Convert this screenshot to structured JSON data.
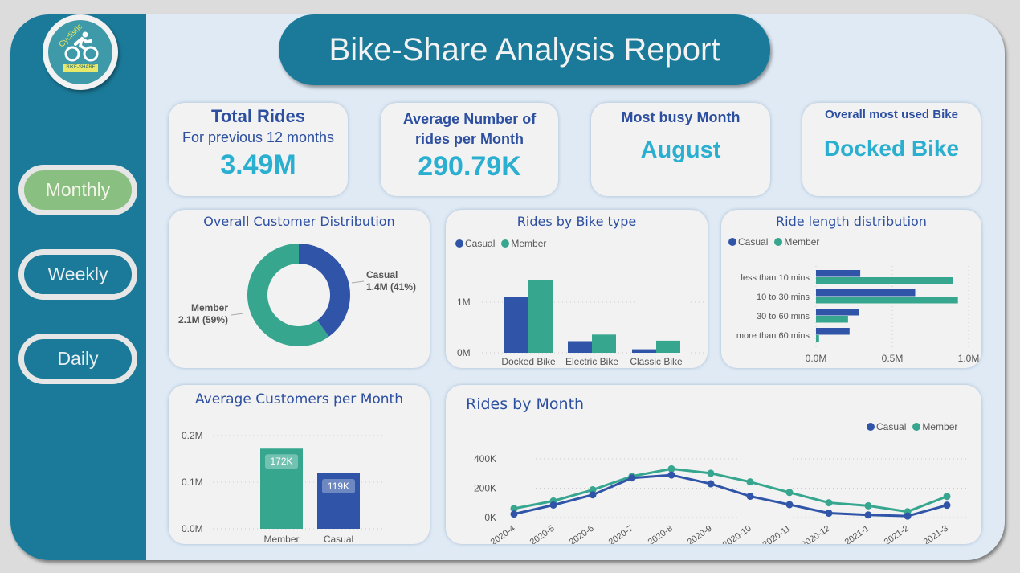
{
  "logo": {
    "brand": "Cyclistic",
    "badge": "BIKE-SHARE"
  },
  "nav": [
    {
      "label": "Monthly",
      "active": true
    },
    {
      "label": "Weekly",
      "active": false
    },
    {
      "label": "Daily",
      "active": false
    }
  ],
  "header": {
    "title": "Bike-Share Analysis Report"
  },
  "kpis": {
    "total_rides": {
      "title": "Total Rides",
      "subtitle": "For previous 12 months",
      "value": "3.49M"
    },
    "avg_rides": {
      "title_line1": "Average Number of",
      "title_line2": "rides per Month",
      "value": "290.79K"
    },
    "busy_month": {
      "title": "Most busy Month",
      "value": "August"
    },
    "most_used_bike": {
      "title": "Overall most used Bike",
      "value": "Docked Bike"
    }
  },
  "colors": {
    "casual": "#3055a8",
    "member": "#37a68f",
    "teal": "#1b7a99",
    "accent": "#2aafd0",
    "title_blue": "#2d4fa0"
  },
  "chart_data": [
    {
      "id": "customer_distribution",
      "type": "pie",
      "title": "Overall Customer Distribution",
      "slices": [
        {
          "name": "Casual",
          "value": 1.4,
          "unit": "M",
          "percent": 41,
          "label_line1": "Casual",
          "label_line2": "1.4M (41%)"
        },
        {
          "name": "Member",
          "value": 2.1,
          "unit": "M",
          "percent": 59,
          "label_line1": "Member",
          "label_line2": "2.1M (59%)"
        }
      ]
    },
    {
      "id": "rides_by_bike_type",
      "type": "bar",
      "title": "Rides by Bike type",
      "legend": [
        "Casual",
        "Member"
      ],
      "categories": [
        "Docked Bike",
        "Electric Bike",
        "Classic Bike"
      ],
      "series": [
        {
          "name": "Casual",
          "values": [
            1.11,
            0.23,
            0.07
          ]
        },
        {
          "name": "Member",
          "values": [
            1.43,
            0.36,
            0.24
          ]
        }
      ],
      "yticks": [
        "0M",
        "1M"
      ],
      "ylim": [
        0,
        1.5
      ],
      "unit": "M"
    },
    {
      "id": "ride_length_distribution",
      "type": "bar",
      "orientation": "horizontal",
      "title": "Ride length distribution",
      "legend": [
        "Casual",
        "Member"
      ],
      "categories": [
        "less than 10 mins",
        "10 to 30 mins",
        "30 to 60 mins",
        "more than 60 mins"
      ],
      "series": [
        {
          "name": "Casual",
          "values": [
            0.29,
            0.65,
            0.28,
            0.22
          ]
        },
        {
          "name": "Member",
          "values": [
            0.9,
            0.93,
            0.21,
            0.02
          ]
        }
      ],
      "xticks": [
        "0.0M",
        "0.5M",
        "1.0M"
      ],
      "xlim": [
        0,
        1.0
      ],
      "unit": "M"
    },
    {
      "id": "avg_customers_per_month",
      "type": "bar",
      "title": "Average Customers per Month",
      "categories": [
        "Member",
        "Casual"
      ],
      "values": [
        172,
        119
      ],
      "data_labels": [
        "172K",
        "119K"
      ],
      "unit": "K",
      "yticks": [
        "0.0M",
        "0.1M",
        "0.2M"
      ],
      "ylim": [
        0,
        200
      ]
    },
    {
      "id": "rides_by_month",
      "type": "line",
      "title": "Rides by Month",
      "legend": [
        "Casual",
        "Member"
      ],
      "x": [
        "2020-4",
        "2020-5",
        "2020-6",
        "2020-7",
        "2020-8",
        "2020-9",
        "2020-10",
        "2020-11",
        "2020-12",
        "2021-1",
        "2021-2",
        "2021-3"
      ],
      "series": [
        {
          "name": "Casual",
          "values": [
            24,
            85,
            155,
            270,
            290,
            230,
            145,
            88,
            30,
            18,
            10,
            84
          ]
        },
        {
          "name": "Member",
          "values": [
            61,
            113,
            189,
            282,
            332,
            302,
            243,
            171,
            101,
            80,
            40,
            144
          ]
        }
      ],
      "yticks": [
        "0K",
        "200K",
        "400K"
      ],
      "ylim": [
        0,
        400
      ],
      "unit": "K"
    }
  ]
}
